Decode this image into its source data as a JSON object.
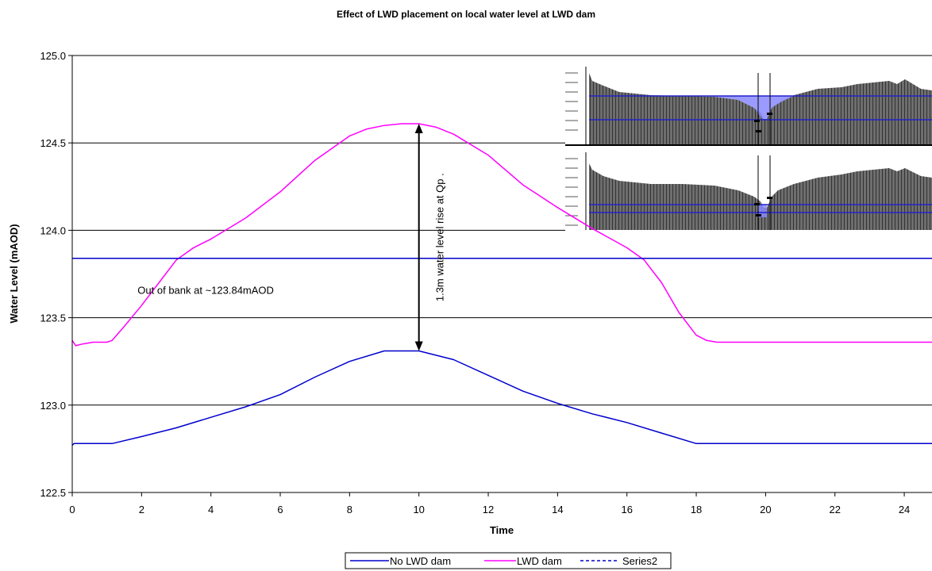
{
  "chart_data": {
    "type": "line",
    "title": "Effect of LWD placement on local water level at LWD dam",
    "xlabel": "Time",
    "ylabel": "Water Level (mAOD)",
    "xlim": [
      0,
      24.8
    ],
    "ylim": [
      122.5,
      125.0
    ],
    "x_ticks": [
      "0",
      "2",
      "4",
      "6",
      "8",
      "10",
      "12",
      "14",
      "16",
      "18",
      "20",
      "22",
      "24"
    ],
    "y_ticks": [
      "122.5",
      "123.0",
      "123.5",
      "124.0",
      "124.5",
      "125.0"
    ],
    "grid": "horizontal",
    "legend_position": "bottom",
    "series": [
      {
        "name": "No LWD dam",
        "color": "#0000cc",
        "style": "solid",
        "x": [
          0,
          0.05,
          0.2,
          1.0,
          1.15,
          2,
          3,
          4,
          5,
          6,
          7,
          8,
          9,
          10,
          11,
          12,
          13,
          14,
          15,
          16,
          17,
          18,
          18.2,
          20,
          22,
          24,
          24.8
        ],
        "y": [
          122.77,
          122.78,
          122.78,
          122.78,
          122.78,
          122.82,
          122.87,
          122.93,
          122.99,
          123.06,
          123.16,
          123.25,
          123.31,
          123.31,
          123.26,
          123.17,
          123.08,
          123.01,
          122.95,
          122.9,
          122.84,
          122.78,
          122.78,
          122.78,
          122.78,
          122.78,
          122.78
        ]
      },
      {
        "name": "LWD dam",
        "color": "#ff00ff",
        "style": "solid",
        "x": [
          0,
          0.1,
          0.3,
          0.6,
          1.0,
          1.15,
          1.5,
          2,
          2.5,
          3,
          3.5,
          4,
          5,
          6,
          7,
          8,
          8.5,
          9,
          9.5,
          10,
          10.5,
          11,
          12,
          13,
          14,
          15,
          16,
          16.5,
          17,
          17.5,
          18,
          18.3,
          18.6,
          20,
          22,
          24,
          24.8
        ],
        "y": [
          123.37,
          123.34,
          123.35,
          123.36,
          123.36,
          123.37,
          123.45,
          123.57,
          123.7,
          123.83,
          123.9,
          123.95,
          124.07,
          124.22,
          124.4,
          124.54,
          124.58,
          124.6,
          124.61,
          124.61,
          124.59,
          124.55,
          124.43,
          124.26,
          124.13,
          124.01,
          123.9,
          123.83,
          123.7,
          123.53,
          123.4,
          123.37,
          123.36,
          123.36,
          123.36,
          123.36,
          123.36
        ]
      },
      {
        "name": "Series2",
        "color": "#0000cc",
        "style": "dashed",
        "x": [
          0,
          24.8
        ],
        "y": [
          123.84,
          123.84
        ]
      }
    ],
    "out_of_bank_level": 123.84,
    "annotations": [
      {
        "id": "bank",
        "text": "Out of bank at ~123.84mAOD",
        "x": 3.85,
        "y": 123.66
      },
      {
        "id": "rise",
        "text": "1.3m water level rise at Qp .",
        "x": 10.7,
        "y": 123.96,
        "rotation": -90
      }
    ],
    "rise_arrow": {
      "x": 10,
      "y_from": 123.31,
      "y_to": 124.61
    }
  }
}
